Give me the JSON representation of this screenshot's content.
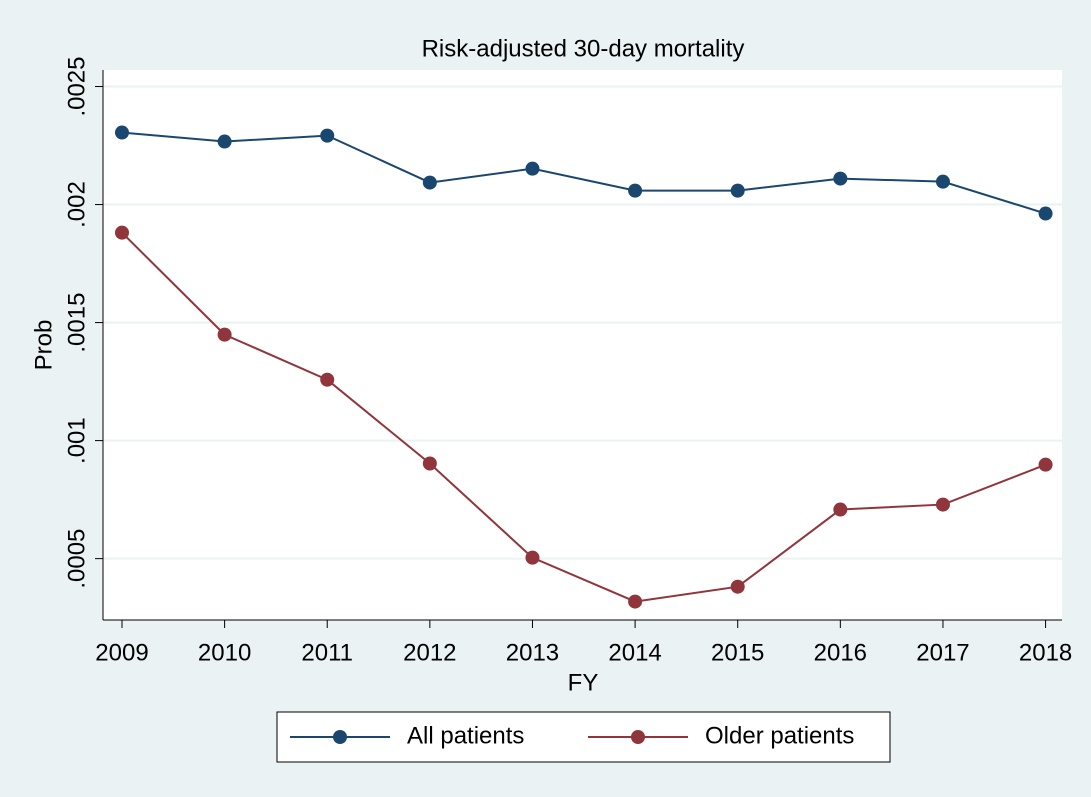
{
  "chart_data": {
    "type": "line",
    "title": "Risk-adjusted 30-day mortality",
    "x_label": "FY",
    "y_label": "Prob",
    "x": [
      2009,
      2010,
      2011,
      2012,
      2013,
      2014,
      2015,
      2016,
      2017,
      2018
    ],
    "series": [
      {
        "name": "All patients",
        "color": "#1a476f",
        "values": [
          0.002305,
          0.002267,
          0.002292,
          0.002093,
          0.002152,
          0.002059,
          0.002059,
          0.00211,
          0.002097,
          0.001962
        ]
      },
      {
        "name": "Older patients",
        "color": "#90353b",
        "values": [
          0.001881,
          0.001449,
          0.001258,
          0.000903,
          0.000504,
          0.000318,
          0.000381,
          0.000708,
          0.000729,
          0.000898
        ]
      }
    ],
    "xlim": [
      2008.815,
      2018.16
    ],
    "xticks": [
      2009,
      2010,
      2011,
      2012,
      2013,
      2014,
      2015,
      2016,
      2017,
      2018
    ],
    "ylim": [
      0.00024,
      0.00257
    ],
    "yticks": [
      {
        "value": 0.0005,
        "label": ".0005"
      },
      {
        "value": 0.001,
        "label": ".001"
      },
      {
        "value": 0.0015,
        "label": ".0015"
      },
      {
        "value": 0.002,
        "label": ".002"
      },
      {
        "value": 0.0025,
        "label": ".0025"
      }
    ],
    "grid": true,
    "legend": "bottom"
  }
}
